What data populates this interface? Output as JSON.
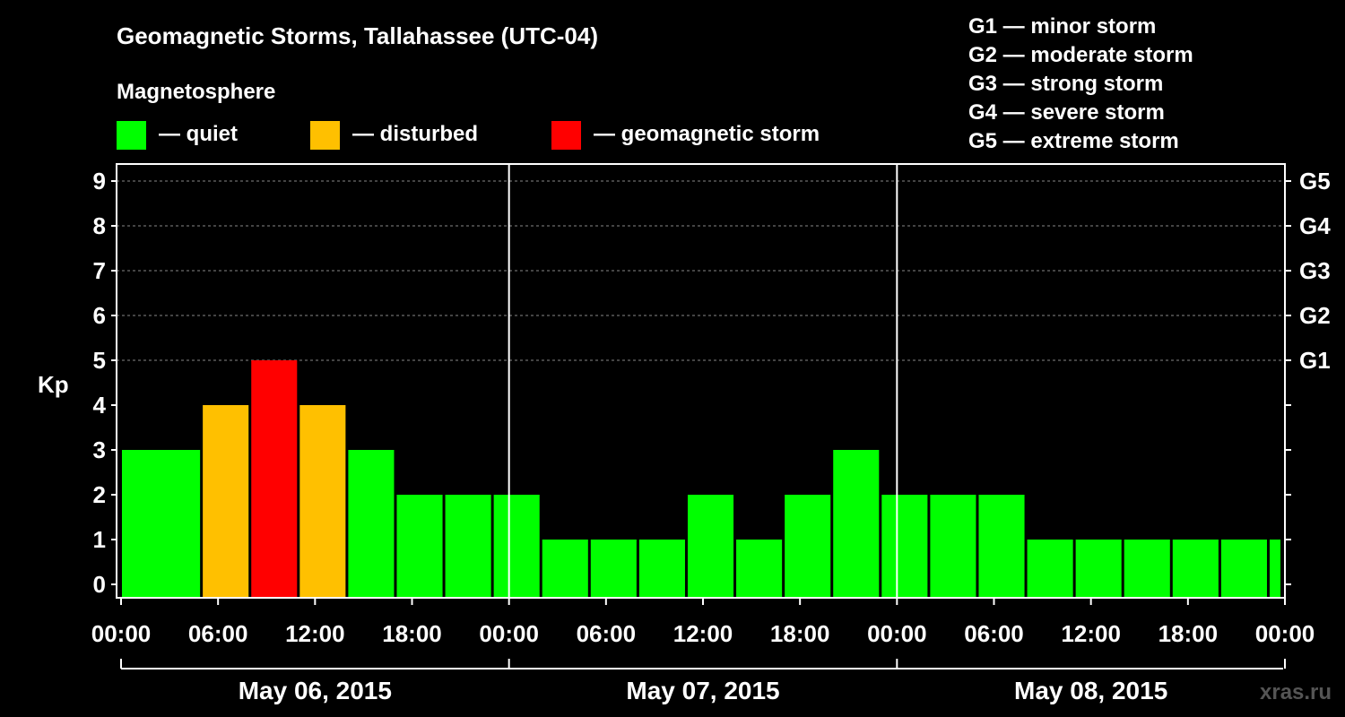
{
  "title": "Geomagnetic Storms, Tallahassee (UTC-04)",
  "legend": {
    "heading": "Magnetosphere",
    "items": [
      {
        "label": "— quiet",
        "color": "#00ff00"
      },
      {
        "label": "— disturbed",
        "color": "#ffc000"
      },
      {
        "label": "— geomagnetic storm",
        "color": "#ff0000"
      }
    ]
  },
  "storm_scale": [
    "G1 — minor storm",
    "G2 — moderate storm",
    "G3 — strong storm",
    "G4 — severe storm",
    "G5 — extreme storm"
  ],
  "watermark": "xras.ru",
  "colors": {
    "background": "#000000",
    "quiet": "#00ff00",
    "disturbed": "#ffc000",
    "storm": "#ff0000",
    "axis": "#ffffff",
    "grid": "#888888"
  },
  "chart_data": {
    "type": "bar",
    "ylabel": "Kp",
    "ylim": [
      0,
      9
    ],
    "yticks": [
      0,
      1,
      2,
      3,
      4,
      5,
      6,
      7,
      8,
      9
    ],
    "right_axis": [
      {
        "kp": 5,
        "label": "G1"
      },
      {
        "kp": 6,
        "label": "G2"
      },
      {
        "kp": 7,
        "label": "G3"
      },
      {
        "kp": 8,
        "label": "G4"
      },
      {
        "kp": 9,
        "label": "G5"
      }
    ],
    "x_hour_range": [
      0,
      72
    ],
    "xtick_labels": [
      "00:00",
      "06:00",
      "12:00",
      "18:00",
      "00:00",
      "06:00",
      "12:00",
      "18:00",
      "00:00",
      "06:00",
      "12:00",
      "18:00",
      "00:00"
    ],
    "days": [
      "May 06, 2015",
      "May 07, 2015",
      "May 08, 2015"
    ],
    "bars": [
      {
        "start_hour": 0,
        "kp": 3,
        "level": "quiet"
      },
      {
        "start_hour": 2,
        "kp": 3,
        "level": "quiet"
      },
      {
        "start_hour": 5,
        "kp": 4,
        "level": "disturbed"
      },
      {
        "start_hour": 8,
        "kp": 5,
        "level": "storm"
      },
      {
        "start_hour": 11,
        "kp": 4,
        "level": "disturbed"
      },
      {
        "start_hour": 14,
        "kp": 3,
        "level": "quiet"
      },
      {
        "start_hour": 17,
        "kp": 2,
        "level": "quiet"
      },
      {
        "start_hour": 20,
        "kp": 2,
        "level": "quiet"
      },
      {
        "start_hour": 23,
        "kp": 2,
        "level": "quiet"
      },
      {
        "start_hour": 26,
        "kp": 1,
        "level": "quiet"
      },
      {
        "start_hour": 29,
        "kp": 1,
        "level": "quiet"
      },
      {
        "start_hour": 32,
        "kp": 1,
        "level": "quiet"
      },
      {
        "start_hour": 35,
        "kp": 2,
        "level": "quiet"
      },
      {
        "start_hour": 38,
        "kp": 1,
        "level": "quiet"
      },
      {
        "start_hour": 41,
        "kp": 2,
        "level": "quiet"
      },
      {
        "start_hour": 44,
        "kp": 3,
        "level": "quiet"
      },
      {
        "start_hour": 47,
        "kp": 2,
        "level": "quiet"
      },
      {
        "start_hour": 50,
        "kp": 2,
        "level": "quiet"
      },
      {
        "start_hour": 53,
        "kp": 2,
        "level": "quiet"
      },
      {
        "start_hour": 56,
        "kp": 1,
        "level": "quiet"
      },
      {
        "start_hour": 59,
        "kp": 1,
        "level": "quiet"
      },
      {
        "start_hour": 62,
        "kp": 1,
        "level": "quiet"
      },
      {
        "start_hour": 65,
        "kp": 1,
        "level": "quiet"
      },
      {
        "start_hour": 68,
        "kp": 1,
        "level": "quiet"
      },
      {
        "start_hour": 71,
        "kp": 1,
        "level": "quiet"
      }
    ]
  }
}
